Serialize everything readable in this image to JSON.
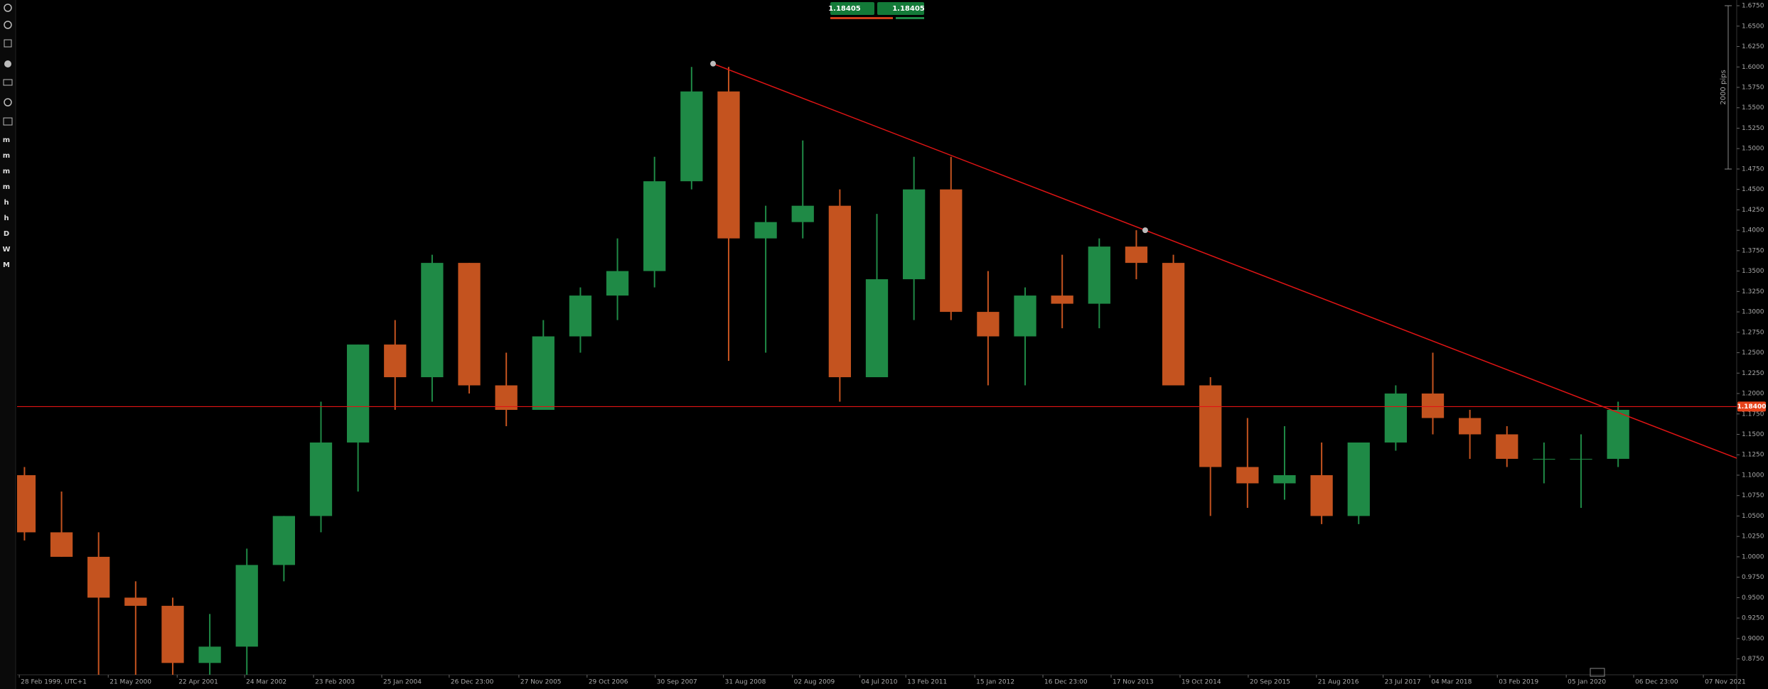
{
  "chart_data": {
    "type": "candlestick",
    "toolbar": [
      "m",
      "m",
      "m",
      "m",
      "h",
      "h",
      "D",
      "W",
      "M"
    ],
    "quote": {
      "bid": "1.18405",
      "ask": "1.18405"
    },
    "pip_scale": "2000 pips",
    "colors": {
      "up": "#1f8a46",
      "down": "#c4531f",
      "line": "#e01414"
    },
    "xlim": [
      1998.9,
      2022.1
    ],
    "ylim": [
      0.8555,
      1.682
    ],
    "xticks": [
      {
        "value": 1998.93,
        "label": "28 Feb 1999, UTC+1"
      },
      {
        "value": 2000.13,
        "label": "21 May 2000"
      },
      {
        "value": 2001.06,
        "label": "22 Apr 2001"
      },
      {
        "value": 2001.97,
        "label": "24 Mar 2002"
      },
      {
        "value": 2002.9,
        "label": "23 Feb 2003"
      },
      {
        "value": 2003.82,
        "label": "25 Jan 2004"
      },
      {
        "value": 2004.73,
        "label": "26 Dec 23:00"
      },
      {
        "value": 2005.67,
        "label": "27 Nov 2005"
      },
      {
        "value": 2006.59,
        "label": "29 Oct 2006"
      },
      {
        "value": 2007.51,
        "label": "30 Sep 2007"
      },
      {
        "value": 2008.43,
        "label": "31 Aug 2008"
      },
      {
        "value": 2009.36,
        "label": "02 Aug 2009"
      },
      {
        "value": 2010.27,
        "label": "04 Jul 2010"
      },
      {
        "value": 2010.89,
        "label": "13 Feb 2011"
      },
      {
        "value": 2011.82,
        "label": "15 Jan 2012"
      },
      {
        "value": 2012.74,
        "label": "16 Dec 23:00"
      },
      {
        "value": 2013.66,
        "label": "17 Nov 2013"
      },
      {
        "value": 2014.59,
        "label": "19 Oct 2014"
      },
      {
        "value": 2015.51,
        "label": "20 Sep 2015"
      },
      {
        "value": 2016.43,
        "label": "21 Aug 2016"
      },
      {
        "value": 2017.33,
        "label": "23 Jul 2017"
      },
      {
        "value": 2017.96,
        "label": "04 Mar 2018"
      },
      {
        "value": 2018.87,
        "label": "03 Feb 2019"
      },
      {
        "value": 2019.8,
        "label": "05 Jan 2020"
      },
      {
        "value": 2020.71,
        "label": "06 Dec 23:00"
      },
      {
        "value": 2021.65,
        "label": "07 Nov 2021"
      }
    ],
    "yticks": [
      {
        "value": 1.675,
        "label": "1.6750"
      },
      {
        "value": 1.65,
        "label": "1.6500"
      },
      {
        "value": 1.625,
        "label": "1.6250"
      },
      {
        "value": 1.6,
        "label": "1.6000"
      },
      {
        "value": 1.575,
        "label": "1.5750"
      },
      {
        "value": 1.55,
        "label": "1.5500"
      },
      {
        "value": 1.525,
        "label": "1.5250"
      },
      {
        "value": 1.5,
        "label": "1.5000"
      },
      {
        "value": 1.475,
        "label": "1.4750"
      },
      {
        "value": 1.45,
        "label": "1.4500"
      },
      {
        "value": 1.425,
        "label": "1.4250"
      },
      {
        "value": 1.4,
        "label": "1.4000"
      },
      {
        "value": 1.375,
        "label": "1.3750"
      },
      {
        "value": 1.35,
        "label": "1.3500"
      },
      {
        "value": 1.325,
        "label": "1.3250"
      },
      {
        "value": 1.3,
        "label": "1.3000"
      },
      {
        "value": 1.275,
        "label": "1.2750"
      },
      {
        "value": 1.25,
        "label": "1.2500"
      },
      {
        "value": 1.225,
        "label": "1.2250"
      },
      {
        "value": 1.2,
        "label": "1.2000"
      },
      {
        "value": 1.175,
        "label": "1.1750"
      },
      {
        "value": 1.15,
        "label": "1.1500"
      },
      {
        "value": 1.125,
        "label": "1.1250"
      },
      {
        "value": 1.1,
        "label": "1.1000"
      },
      {
        "value": 1.075,
        "label": "1.0750"
      },
      {
        "value": 1.05,
        "label": "1.0500"
      },
      {
        "value": 1.025,
        "label": "1.0250"
      },
      {
        "value": 1.0,
        "label": "1.0000"
      },
      {
        "value": 0.975,
        "label": "0.9750"
      },
      {
        "value": 0.95,
        "label": "0.9500"
      },
      {
        "value": 0.925,
        "label": "0.9250"
      },
      {
        "value": 0.9,
        "label": "0.9000"
      },
      {
        "value": 0.875,
        "label": "0.8750"
      }
    ],
    "x": [
      1999.0,
      1999.5,
      2000.0,
      2000.5,
      2001.0,
      2001.5,
      2002.0,
      2002.5,
      2003.0,
      2003.5,
      2004.0,
      2004.5,
      2005.0,
      2005.5,
      2006.0,
      2006.5,
      2007.0,
      2007.5,
      2008.0,
      2008.5,
      2009.0,
      2009.5,
      2010.0,
      2010.5,
      2011.0,
      2011.5,
      2012.0,
      2012.5,
      2013.0,
      2013.5,
      2014.0,
      2014.5,
      2015.0,
      2015.5,
      2016.0,
      2016.5,
      2017.0,
      2017.5,
      2018.0,
      2018.5,
      2019.0,
      2019.5,
      2020.0,
      2020.5
    ],
    "open": [
      1.1,
      1.03,
      1.0,
      0.95,
      0.94,
      0.87,
      0.89,
      0.99,
      1.05,
      1.14,
      1.26,
      1.22,
      1.36,
      1.21,
      1.18,
      1.27,
      1.32,
      1.35,
      1.46,
      1.57,
      1.39,
      1.41,
      1.43,
      1.22,
      1.34,
      1.45,
      1.3,
      1.27,
      1.32,
      1.31,
      1.38,
      1.36,
      1.21,
      1.11,
      1.09,
      1.1,
      1.05,
      1.14,
      1.2,
      1.17,
      1.15,
      1.12,
      1.12,
      1.12
    ],
    "high": [
      1.11,
      1.08,
      1.03,
      0.97,
      0.95,
      0.93,
      1.01,
      1.05,
      1.19,
      1.26,
      1.29,
      1.37,
      1.36,
      1.25,
      1.29,
      1.33,
      1.39,
      1.49,
      1.6,
      1.6,
      1.43,
      1.51,
      1.45,
      1.42,
      1.49,
      1.49,
      1.35,
      1.33,
      1.37,
      1.39,
      1.4,
      1.37,
      1.22,
      1.17,
      1.16,
      1.14,
      1.14,
      1.21,
      1.25,
      1.18,
      1.16,
      1.14,
      1.15,
      1.19
    ],
    "low": [
      1.02,
      1.0,
      0.85,
      0.82,
      0.83,
      0.84,
      0.85,
      0.97,
      1.03,
      1.08,
      1.18,
      1.19,
      1.2,
      1.16,
      1.18,
      1.25,
      1.29,
      1.33,
      1.45,
      1.24,
      1.25,
      1.39,
      1.19,
      1.22,
      1.29,
      1.29,
      1.21,
      1.21,
      1.28,
      1.28,
      1.34,
      1.21,
      1.05,
      1.06,
      1.07,
      1.04,
      1.04,
      1.13,
      1.15,
      1.12,
      1.11,
      1.09,
      1.06,
      1.11
    ],
    "close": [
      1.03,
      1.0,
      0.95,
      0.94,
      0.87,
      0.89,
      0.99,
      1.05,
      1.14,
      1.26,
      1.22,
      1.36,
      1.21,
      1.18,
      1.27,
      1.32,
      1.35,
      1.46,
      1.57,
      1.39,
      1.41,
      1.43,
      1.22,
      1.34,
      1.45,
      1.3,
      1.27,
      1.32,
      1.31,
      1.38,
      1.36,
      1.21,
      1.11,
      1.09,
      1.1,
      1.05,
      1.14,
      1.2,
      1.17,
      1.15,
      1.12,
      1.12,
      1.12,
      1.18
    ],
    "trendline": {
      "x": [
        2008.29,
        2014.12
      ],
      "y": [
        1.604,
        1.4
      ]
    },
    "price_line": {
      "value": 1.184,
      "label": "1.18400"
    }
  }
}
